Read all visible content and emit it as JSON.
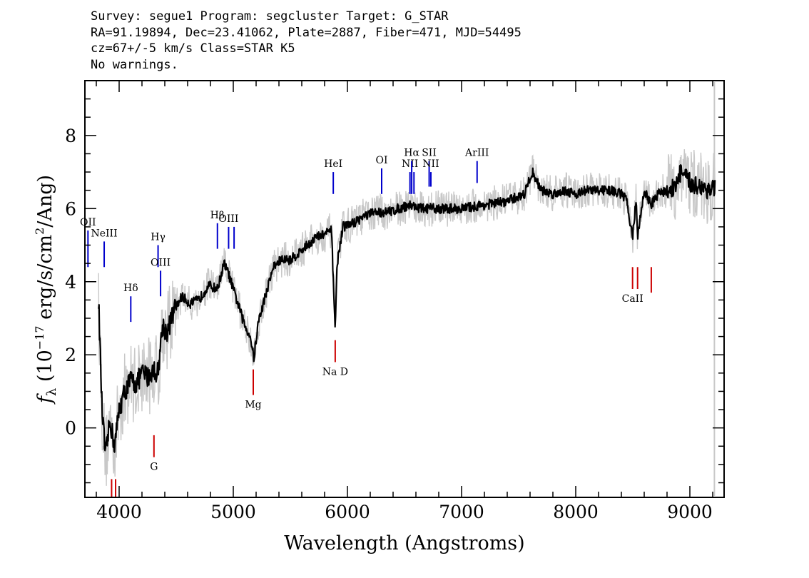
{
  "header": {
    "line1": "Survey: segue1 Program: segcluster Target: G_STAR",
    "line2": "RA=91.19894, Dec=23.41062, Plate=2887, Fiber=471, MJD=54495",
    "line3": "cz=67+/-5 km/s Class=STAR K5",
    "line4": "No warnings."
  },
  "chart_data": {
    "type": "line",
    "xlabel": "Wavelength (Angstroms)",
    "ylabel": "f_λ (10^-17 erg/s/cm^2/Ang)",
    "xlim": [
      3700,
      9300
    ],
    "ylim": [
      -1.9,
      9.5
    ],
    "x_ticks": [
      4000,
      5000,
      6000,
      7000,
      8000,
      9000
    ],
    "y_ticks": [
      0,
      2,
      4,
      6,
      8
    ],
    "grid": false,
    "legend": "none",
    "colors": {
      "spectrum": "#000000",
      "noise_band": "#c8c8c8",
      "emission_line": "#0000cc",
      "absorption_line": "#cc0000"
    },
    "series": [
      {
        "x": [
          3820,
          3850,
          3880,
          3920,
          3960,
          4000,
          4050,
          4100,
          4150,
          4200,
          4250,
          4300,
          4340,
          4380,
          4420,
          4480,
          4550,
          4620,
          4700,
          4780,
          4860,
          4920,
          4960,
          5000,
          5050,
          5100,
          5150,
          5180,
          5220,
          5280,
          5350,
          5420,
          5500,
          5580,
          5650,
          5720,
          5800,
          5860,
          5880,
          5893,
          5910,
          5960,
          6050,
          6150,
          6250,
          6350,
          6450,
          6550,
          6650,
          6800,
          7000,
          7200,
          7400,
          7550,
          7620,
          7700,
          7800,
          7900,
          8000,
          8100,
          8200,
          8300,
          8400,
          8450,
          8498,
          8530,
          8542,
          8600,
          8662,
          8720,
          8800,
          8870,
          8920,
          9000,
          9100,
          9180,
          9220
        ],
        "y": [
          3.5,
          0.5,
          -0.8,
          0.2,
          -0.5,
          0.5,
          1.0,
          1.3,
          1.2,
          1.5,
          1.4,
          1.6,
          1.5,
          2.8,
          2.6,
          3.2,
          3.6,
          3.4,
          3.5,
          3.9,
          3.8,
          4.5,
          4.2,
          3.8,
          3.3,
          2.8,
          2.5,
          1.9,
          2.9,
          3.6,
          4.4,
          4.6,
          4.6,
          4.8,
          5.0,
          5.2,
          5.3,
          5.4,
          3.8,
          2.7,
          4.5,
          5.5,
          5.6,
          5.8,
          5.9,
          5.9,
          6.0,
          6.1,
          6.0,
          6.0,
          6.0,
          6.1,
          6.2,
          6.4,
          7.0,
          6.5,
          6.4,
          6.5,
          6.4,
          6.5,
          6.5,
          6.5,
          6.4,
          6.2,
          5.2,
          6.3,
          5.2,
          6.5,
          6.1,
          6.4,
          6.5,
          6.6,
          7.0,
          6.7,
          6.6,
          6.5,
          6.6
        ]
      }
    ],
    "emission_lines": [
      {
        "label": "OII",
        "x": 3727,
        "y_top": 5.4,
        "y_bottom": 4.4
      },
      {
        "label": "NeIII",
        "x": 3869,
        "y_top": 5.1,
        "y_bottom": 4.4
      },
      {
        "label": "Hδ",
        "x": 4102,
        "y_top": 3.6,
        "y_bottom": 2.9
      },
      {
        "label": "Hγ",
        "x": 4341,
        "y_top": 5.0,
        "y_bottom": 4.4
      },
      {
        "label": "OIII",
        "x": 4363,
        "y_top": 4.3,
        "y_bottom": 3.6
      },
      {
        "label": "Hβ",
        "x": 4861,
        "y_top": 5.6,
        "y_bottom": 4.9
      },
      {
        "label": "OIII",
        "x": 4959,
        "y_top": 5.5,
        "y_bottom": 4.9
      },
      {
        "label": "",
        "x": 5007,
        "y_top": 5.5,
        "y_bottom": 4.9
      },
      {
        "label": "HeI",
        "x": 5876,
        "y_top": 7.0,
        "y_bottom": 6.4
      },
      {
        "label": "OI",
        "x": 6300,
        "y_top": 7.1,
        "y_bottom": 6.4
      },
      {
        "label": "NII",
        "x": 6548,
        "y_top": 7.0,
        "y_bottom": 6.4
      },
      {
        "label": "Hα",
        "x": 6563,
        "y_top": 7.3,
        "y_bottom": 6.4
      },
      {
        "label": "",
        "x": 6583,
        "y_top": 7.0,
        "y_bottom": 6.4
      },
      {
        "label": "SII",
        "x": 6716,
        "y_top": 7.3,
        "y_bottom": 6.6
      },
      {
        "label": "NII",
        "x": 6731,
        "y_top": 7.0,
        "y_bottom": 6.6
      },
      {
        "label": "ArIII",
        "x": 7136,
        "y_top": 7.3,
        "y_bottom": 6.7
      }
    ],
    "absorption_lines": [
      {
        "label": "",
        "x": 3934,
        "y_top": -1.4,
        "y_bottom": -2.0
      },
      {
        "label": "",
        "x": 3969,
        "y_top": -1.4,
        "y_bottom": -2.0
      },
      {
        "label": "G",
        "x": 4305,
        "y_top": -0.2,
        "y_bottom": -0.8
      },
      {
        "label": "Mg",
        "x": 5175,
        "y_top": 1.6,
        "y_bottom": 0.9
      },
      {
        "label": "Na D",
        "x": 5893,
        "y_top": 2.4,
        "y_bottom": 1.8
      },
      {
        "label": "CaII",
        "x": 8498,
        "y_top": 4.4,
        "y_bottom": 3.8
      },
      {
        "label": "",
        "x": 8542,
        "y_top": 4.4,
        "y_bottom": 3.8
      },
      {
        "label": "",
        "x": 8662,
        "y_top": 4.4,
        "y_bottom": 3.7
      }
    ]
  }
}
